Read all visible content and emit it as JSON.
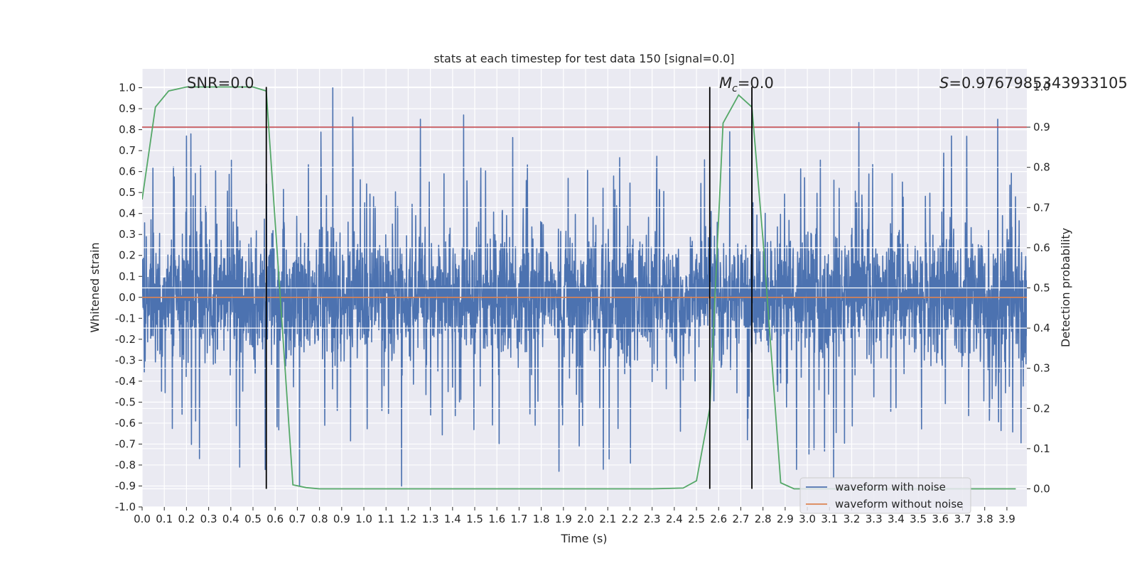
{
  "chart_data": {
    "type": "line",
    "title": "stats at each timestep for test data 150 [signal=0.0]",
    "xlabel": "Time (s)",
    "ylabel": "Whitened strain",
    "y2label": "Detection probability",
    "xlim": [
      0.0,
      3.99
    ],
    "ylim": [
      -1.0,
      1.09
    ],
    "y2lim": [
      -0.045,
      1.045
    ],
    "x_ticks": [
      0.0,
      0.1,
      0.2,
      0.3,
      0.4,
      0.5,
      0.6,
      0.7,
      0.8,
      0.9,
      1.0,
      1.1,
      1.2,
      1.3,
      1.4,
      1.5,
      1.6,
      1.7,
      1.8,
      1.9,
      2.0,
      2.1,
      2.2,
      2.3,
      2.4,
      2.5,
      2.6,
      2.7,
      2.8,
      2.9,
      3.0,
      3.1,
      3.2,
      3.3,
      3.4,
      3.5,
      3.6,
      3.7,
      3.8,
      3.9
    ],
    "y_ticks": [
      -1.0,
      -0.9,
      -0.8,
      -0.7,
      -0.6,
      -0.5,
      -0.4,
      -0.3,
      -0.2,
      -0.1,
      0.0,
      0.1,
      0.2,
      0.3,
      0.4,
      0.5,
      0.6,
      0.7,
      0.8,
      0.9,
      1.0
    ],
    "y2_ticks": [
      0.0,
      0.1,
      0.2,
      0.3,
      0.4,
      0.5,
      0.6,
      0.7,
      0.8,
      0.9,
      1.0
    ],
    "grid": true,
    "legend_position": "bottom-right",
    "series": [
      {
        "name": "waveform with noise",
        "color": "#4c72b0",
        "axis": "left",
        "style": "dense-noise",
        "duration_s": 4.0,
        "envelope_typical": 0.45,
        "notable_peaks": [
          {
            "x": 0.2,
            "y": 0.77
          },
          {
            "x": 0.22,
            "y": 0.78
          },
          {
            "x": 0.86,
            "y": 1.0
          },
          {
            "x": 0.95,
            "y": 0.86
          },
          {
            "x": 1.45,
            "y": 0.87
          },
          {
            "x": 2.65,
            "y": 0.79
          },
          {
            "x": 2.75,
            "y": 0.95
          },
          {
            "x": 3.65,
            "y": 0.77
          },
          {
            "x": 0.44,
            "y": -0.81
          },
          {
            "x": 0.71,
            "y": -0.9
          },
          {
            "x": 1.17,
            "y": -0.9
          },
          {
            "x": 1.88,
            "y": -0.83
          },
          {
            "x": 2.08,
            "y": -0.82
          },
          {
            "x": 2.73,
            "y": -0.68
          }
        ]
      },
      {
        "name": "waveform without noise",
        "color": "#dd8452",
        "axis": "left",
        "x": [
          0.0,
          3.99
        ],
        "y": [
          0.0,
          0.0
        ]
      },
      {
        "name": "Detection probability",
        "color": "#55a868",
        "axis": "right",
        "x": [
          0.0,
          0.06,
          0.12,
          0.2,
          0.3,
          0.4,
          0.5,
          0.56,
          0.62,
          0.68,
          0.74,
          0.8,
          1.0,
          1.5,
          2.0,
          2.3,
          2.44,
          2.5,
          2.56,
          2.62,
          2.69,
          2.75,
          2.8,
          2.88,
          2.94,
          3.0,
          3.5,
          3.94
        ],
        "y": [
          0.72,
          0.95,
          0.99,
          1.0,
          1.0,
          1.0,
          1.0,
          0.99,
          0.5,
          0.01,
          0.003,
          0.0,
          0.0,
          0.0,
          0.0,
          0.0,
          0.002,
          0.02,
          0.2,
          0.91,
          0.98,
          0.95,
          0.62,
          0.015,
          0.0,
          0.0,
          0.0,
          0.0
        ]
      }
    ],
    "threshold": {
      "axis": "right",
      "value": 0.9,
      "color": "#c44e52"
    },
    "vertical_markers": [
      0.56,
      2.56,
      2.75
    ],
    "annotations": [
      "SNR=0.0",
      "=0.0",
      "=0.9767985343933105"
    ],
    "annotation_symbols": {
      "mc_base": "M",
      "mc_sub": "c",
      "s": "S"
    }
  },
  "legend": {
    "items": [
      {
        "label": "waveform with noise",
        "color": "#4c72b0"
      },
      {
        "label": "waveform without noise",
        "color": "#dd8452"
      }
    ]
  }
}
